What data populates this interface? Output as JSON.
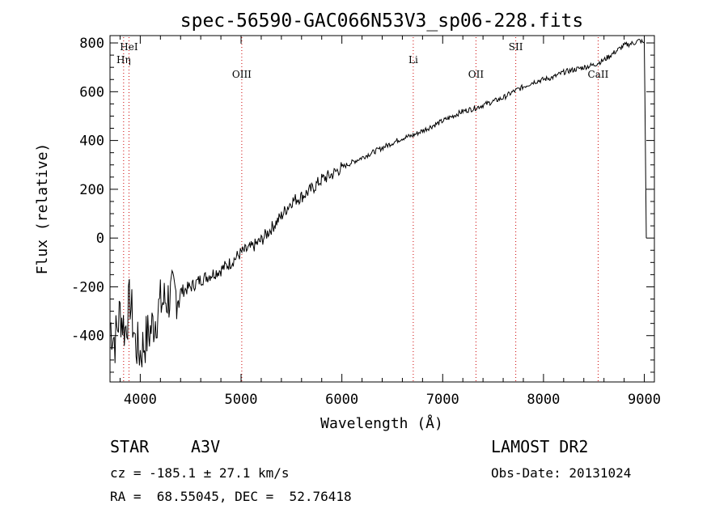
{
  "chart_data": {
    "type": "line",
    "title": "spec-56590-GAC066N53V3_sp06-228.fits",
    "xlabel": "Wavelength (Å)",
    "ylabel": "Flux (relative)",
    "xlim": [
      3700,
      9100
    ],
    "ylim": [
      -590,
      830
    ],
    "xticks": [
      4000,
      5000,
      6000,
      7000,
      8000,
      9000
    ],
    "yticks": [
      -400,
      -200,
      0,
      200,
      400,
      600,
      800
    ],
    "grid": false,
    "line_color": "#000000",
    "marker_color": "#cc0000",
    "spectral_lines": [
      {
        "name": "HeI",
        "wavelength": 3888,
        "row": 0
      },
      {
        "name": "Hη",
        "wavelength": 3835,
        "row": 1
      },
      {
        "name": "OIII",
        "wavelength": 5007,
        "row": 2
      },
      {
        "name": "Li",
        "wavelength": 6708,
        "row": 1
      },
      {
        "name": "OII",
        "wavelength": 7330,
        "row": 2
      },
      {
        "name": "SII",
        "wavelength": 7725,
        "row": 0
      },
      {
        "name": "CaII",
        "wavelength": 8542,
        "row": 2
      }
    ],
    "series": [
      {
        "x": [
          3700,
          3750,
          3800,
          3850,
          3900,
          3950,
          4000,
          4050,
          4100,
          4150,
          4200,
          4300,
          4400,
          4500,
          4600,
          4700,
          4800,
          4900,
          5000,
          5100,
          5200,
          5300,
          5400,
          5500,
          5600,
          5700,
          5800,
          5900,
          6000,
          6100,
          6200,
          6300,
          6400,
          6500,
          6600,
          6700,
          6800,
          6900,
          7000,
          7100,
          7200,
          7300,
          7400,
          7500,
          7600,
          7700,
          7800,
          7900,
          8000,
          8100,
          8200,
          8300,
          8400,
          8500,
          8600,
          8700,
          8800,
          8900,
          8950,
          9000,
          9010,
          9020
        ],
        "y": [
          -350,
          -420,
          -300,
          -380,
          -250,
          -430,
          -470,
          -420,
          -380,
          -330,
          -270,
          -240,
          -220,
          -200,
          -170,
          -150,
          -130,
          -100,
          -60,
          -40,
          -10,
          40,
          90,
          150,
          170,
          200,
          240,
          260,
          290,
          310,
          330,
          350,
          370,
          390,
          410,
          420,
          440,
          460,
          480,
          500,
          520,
          530,
          545,
          560,
          575,
          600,
          620,
          640,
          650,
          660,
          680,
          690,
          700,
          710,
          730,
          760,
          790,
          800,
          810,
          800,
          400,
          0
        ]
      }
    ]
  },
  "info": {
    "object_class": "STAR",
    "subclass": "A3V",
    "survey": "LAMOST DR2",
    "redshift": "cz = -185.1 ± 27.1 km/s",
    "obs_date": "Obs-Date: 20131024",
    "coords": "RA =  68.55045, DEC =  52.76418"
  }
}
